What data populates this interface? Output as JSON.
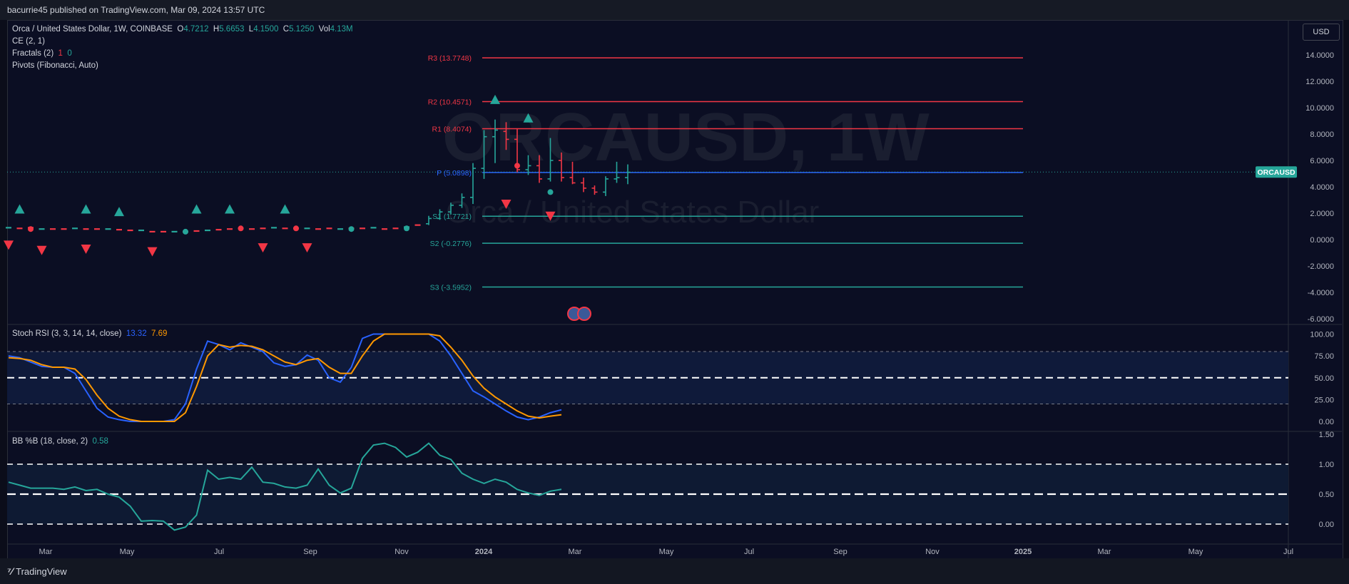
{
  "header": {
    "published": "bacurrie45 published on TradingView.com, Mar 09, 2024 13:57 UTC"
  },
  "footer": {
    "brand": "TradingView"
  },
  "currency_button": "USD",
  "symbol_legend": {
    "title": "Orca / United States Dollar, 1W, COINBASE",
    "o_label": "O",
    "o": "4.7212",
    "h_label": "H",
    "h": "5.6653",
    "l_label": "L",
    "l": "4.1500",
    "c_label": "C",
    "c": "5.1250",
    "vol_label": "Vol",
    "vol": "4.13M"
  },
  "indicators": {
    "ce": "CE (2, 1)",
    "fractals": "Fractals (2)",
    "fractals_up": "1",
    "fractals_down": "0",
    "pivots": "Pivots (Fibonacci, Auto)",
    "stoch": "Stoch RSI (3, 3, 14, 14, close)",
    "stoch_k": "13.32",
    "stoch_d": "7.69",
    "bb": "BB %B (18, close, 2)",
    "bb_val": "0.58"
  },
  "watermark": {
    "symbol": "ORCAUSD, 1W",
    "name": "Orca / United States Dollar"
  },
  "price_label": "ORCAUSD",
  "colors": {
    "up": "#26a69a",
    "down": "#f23645",
    "stoch_k": "#2962ff",
    "stoch_d": "#ff9800",
    "bb": "#26a69a",
    "pivot": "#2962ff"
  },
  "chart_data": [
    {
      "type": "line",
      "pane": "price",
      "y_ticks": [
        "14.0000",
        "12.0000",
        "10.0000",
        "8.0000",
        "6.0000",
        "4.0000",
        "2.0000",
        "0.0000",
        "-2.0000",
        "-4.0000",
        "-6.0000"
      ],
      "ylim": [
        -6,
        14
      ],
      "pivots": [
        {
          "label": "R3 (13.7748)",
          "value": 13.7748,
          "color": "#f23645"
        },
        {
          "label": "R2 (10.4571)",
          "value": 10.4571,
          "color": "#f23645"
        },
        {
          "label": "R1 (8.4074)",
          "value": 8.4074,
          "color": "#f23645"
        },
        {
          "label": "P (5.0898)",
          "value": 5.0898,
          "color": "#2962ff"
        },
        {
          "label": "S1 (1.7721)",
          "value": 1.7721,
          "color": "#26a69a"
        },
        {
          "label": "S2 (-0.2776)",
          "value": -0.2776,
          "color": "#26a69a"
        },
        {
          "label": "S3 (-3.5952)",
          "value": -3.5952,
          "color": "#26a69a"
        }
      ],
      "x_labels": [
        "Mar",
        "May",
        "Jul",
        "Sep",
        "Nov",
        "2024",
        "Mar",
        "May",
        "Jul",
        "Sep",
        "Nov",
        "2025",
        "Mar",
        "May",
        "Jul"
      ],
      "flat_series": [
        0.9,
        0.85,
        0.9,
        0.8,
        0.8,
        0.8,
        0.85,
        0.8,
        0.8,
        0.8,
        0.75,
        0.7,
        0.7,
        0.6,
        0.6,
        0.6,
        0.6,
        0.65,
        0.7,
        0.75,
        0.8,
        0.85,
        0.8,
        0.85,
        0.9,
        0.85,
        0.85,
        0.85,
        0.8,
        0.85,
        0.8,
        0.85,
        0.85,
        0.9,
        0.8,
        0.85,
        0.95,
        1.1
      ],
      "candles": [
        {
          "o": 1.2,
          "c": 1.6,
          "h": 1.8,
          "l": 1.1
        },
        {
          "o": 1.6,
          "c": 2.1,
          "h": 2.3,
          "l": 1.5
        },
        {
          "o": 2.1,
          "c": 2.6,
          "h": 2.8,
          "l": 1.9
        },
        {
          "o": 2.6,
          "c": 3.2,
          "h": 3.5,
          "l": 2.4
        },
        {
          "o": 3.2,
          "c": 5.4,
          "h": 5.8,
          "l": 2.7
        },
        {
          "o": 5.4,
          "c": 7.8,
          "h": 8.3,
          "l": 4.6
        },
        {
          "o": 7.8,
          "c": 8.3,
          "h": 9.1,
          "l": 5.8
        },
        {
          "o": 8.2,
          "c": 7.6,
          "h": 8.9,
          "l": 6.8
        },
        {
          "o": 7.6,
          "c": 5.3,
          "h": 8.4,
          "l": 5.1
        },
        {
          "o": 5.3,
          "c": 5.6,
          "h": 6.4,
          "l": 4.9
        },
        {
          "o": 5.6,
          "c": 4.6,
          "h": 6.4,
          "l": 4.3
        },
        {
          "o": 4.6,
          "c": 6.0,
          "h": 7.7,
          "l": 4.4
        },
        {
          "o": 6.0,
          "c": 4.7,
          "h": 6.6,
          "l": 4.4
        },
        {
          "o": 4.7,
          "c": 4.3,
          "h": 5.9,
          "l": 4.2
        },
        {
          "o": 4.3,
          "c": 3.9,
          "h": 4.7,
          "l": 3.6
        },
        {
          "o": 3.9,
          "c": 3.6,
          "h": 4.1,
          "l": 3.4
        },
        {
          "o": 3.6,
          "c": 4.6,
          "h": 4.8,
          "l": 3.3
        },
        {
          "o": 4.6,
          "c": 4.7,
          "h": 5.9,
          "l": 4.3
        },
        {
          "o": 4.7,
          "c": 5.1,
          "h": 5.7,
          "l": 4.2
        }
      ],
      "fractal_up_values": [
        2.3,
        2.3,
        2.1,
        2.3,
        2.3,
        2.3,
        10.6,
        9.2
      ],
      "fractal_down_values": [
        -0.4,
        -0.8,
        -0.7,
        -0.9,
        -0.6,
        -0.6,
        2.7,
        1.8
      ],
      "chandelier_markers": [
        {
          "value": 0.8,
          "color": "#f23645"
        },
        {
          "value": 0.85,
          "color": "#f23645"
        },
        {
          "value": 0.6,
          "color": "#26a69a"
        },
        {
          "value": 0.85,
          "color": "#f23645"
        },
        {
          "value": 0.8,
          "color": "#26a69a"
        },
        {
          "value": 0.85,
          "color": "#26a69a"
        },
        {
          "value": 5.6,
          "color": "#f23645"
        },
        {
          "value": 3.6,
          "color": "#26a69a"
        }
      ]
    },
    {
      "type": "line",
      "pane": "stoch_rsi",
      "title": "Stoch RSI (3, 3, 14, 14, close)",
      "y_ticks": [
        "100.00",
        "75.00",
        "50.00",
        "25.00",
        "0.00"
      ],
      "ylim": [
        0,
        100
      ],
      "series": [
        {
          "name": "K",
          "values": [
            75,
            73,
            68,
            63,
            62,
            62,
            55,
            35,
            15,
            5,
            2,
            0,
            0,
            0,
            0,
            2,
            20,
            60,
            92,
            88,
            82,
            90,
            85,
            80,
            67,
            63,
            65,
            76,
            70,
            50,
            45,
            62,
            95,
            100,
            100,
            100,
            100,
            100,
            100,
            92,
            75,
            55,
            35,
            28,
            20,
            12,
            5,
            2,
            5,
            10,
            13.32
          ]
        },
        {
          "name": "D",
          "values": [
            73,
            72,
            70,
            65,
            62,
            62,
            60,
            48,
            30,
            15,
            6,
            2,
            0,
            0,
            0,
            0,
            10,
            40,
            75,
            88,
            85,
            87,
            86,
            82,
            75,
            68,
            65,
            70,
            72,
            62,
            55,
            55,
            75,
            92,
            100,
            100,
            100,
            100,
            100,
            98,
            85,
            70,
            52,
            38,
            28,
            20,
            12,
            6,
            4,
            6,
            7.69
          ]
        }
      ],
      "bands": [
        80,
        50,
        20
      ]
    },
    {
      "type": "line",
      "pane": "bb_percent_b",
      "title": "BB %B (18, close, 2)",
      "y_ticks": [
        "1.50",
        "1.00",
        "0.50",
        "0.00"
      ],
      "ylim": [
        -0.2,
        1.5
      ],
      "series": [
        {
          "name": "%B",
          "values": [
            0.7,
            0.65,
            0.6,
            0.6,
            0.6,
            0.58,
            0.62,
            0.56,
            0.58,
            0.5,
            0.45,
            0.3,
            0.05,
            0.06,
            0.05,
            -0.1,
            -0.05,
            0.15,
            0.9,
            0.75,
            0.78,
            0.75,
            0.95,
            0.7,
            0.68,
            0.62,
            0.6,
            0.65,
            0.92,
            0.65,
            0.52,
            0.6,
            1.1,
            1.32,
            1.35,
            1.28,
            1.12,
            1.2,
            1.35,
            1.15,
            1.08,
            0.85,
            0.75,
            0.68,
            0.75,
            0.7,
            0.58,
            0.52,
            0.48,
            0.55,
            0.58
          ]
        }
      ],
      "bands": [
        1.0,
        0.5,
        0.0
      ]
    }
  ]
}
